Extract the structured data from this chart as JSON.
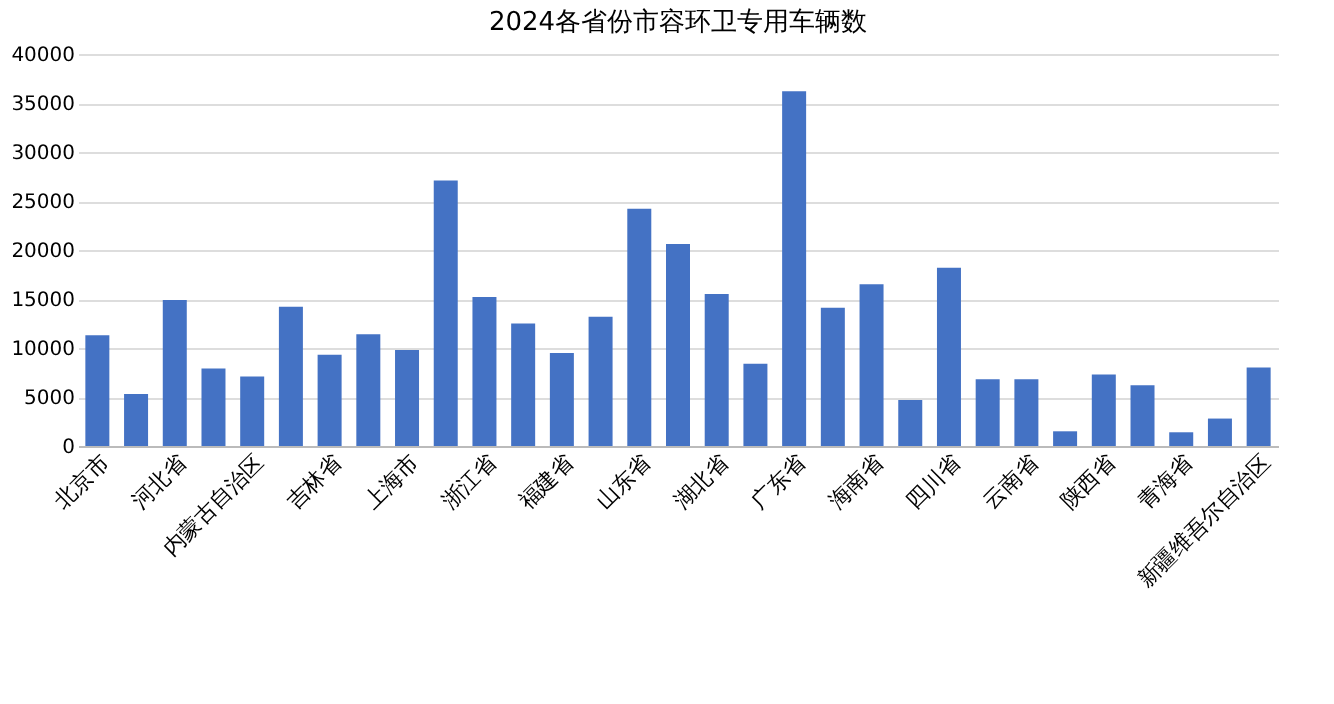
{
  "chart_data": {
    "type": "bar",
    "title": "2024各省份市容环卫专用车辆数",
    "categories": [
      "北京市",
      null,
      "河北省",
      null,
      "内蒙古自治区",
      null,
      "吉林省",
      null,
      "上海市",
      null,
      "浙江省",
      null,
      "福建省",
      null,
      "山东省",
      null,
      "湖北省",
      null,
      "广东省",
      null,
      "海南省",
      null,
      "四川省",
      null,
      "云南省",
      null,
      "陕西省",
      null,
      "青海省",
      null,
      "新疆维吾尔自治区"
    ],
    "values": [
      11300,
      5300,
      14900,
      7900,
      7100,
      14200,
      9300,
      11400,
      9800,
      27100,
      15200,
      12500,
      9500,
      13200,
      24200,
      20600,
      15500,
      8400,
      36200,
      14100,
      16500,
      4700,
      18200,
      6800,
      6800,
      1500,
      7300,
      6200,
      1400,
      2800,
      8000
    ],
    "color": "#4472c4",
    "ylim": [
      0,
      40000
    ],
    "yticks": [
      0,
      5000,
      10000,
      15000,
      20000,
      25000,
      30000,
      35000,
      40000
    ],
    "grid": "y"
  }
}
